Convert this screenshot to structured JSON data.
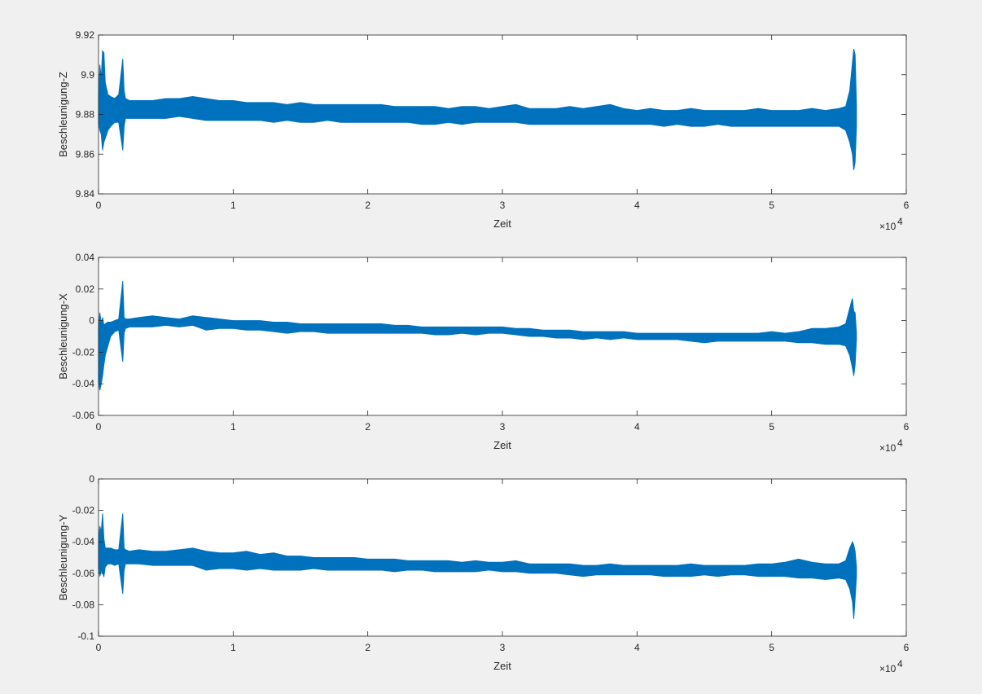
{
  "chart_data": [
    {
      "type": "band",
      "color": "#0072bd",
      "xlabel": "Zeit",
      "ylabel": "Beschleunigung-Z",
      "x_multiplier": "×10",
      "x_multiplier_exponent": "4",
      "xlim": [
        0,
        60000
      ],
      "xticks": [
        0,
        {
          "value": 10000,
          "label": "1"
        },
        {
          "value": 20000,
          "label": "2"
        },
        {
          "value": 30000,
          "label": "3"
        },
        {
          "value": 40000,
          "label": "4"
        },
        {
          "value": 50000,
          "label": "5"
        },
        {
          "value": 60000,
          "label": "6"
        }
      ],
      "ylim": [
        9.84,
        9.92
      ],
      "yticks": [
        9.84,
        9.86,
        9.88,
        9.9,
        9.92
      ],
      "x": [
        0,
        100,
        200,
        300,
        400,
        500,
        700,
        900,
        1200,
        1500,
        1800,
        1900,
        2000,
        2300,
        3000,
        4000,
        5000,
        6000,
        7000,
        8000,
        9000,
        10000,
        11000,
        12000,
        13000,
        14000,
        15000,
        16000,
        17000,
        18000,
        19000,
        20000,
        21000,
        22000,
        23000,
        24000,
        25000,
        26000,
        27000,
        28000,
        29000,
        30000,
        31000,
        32000,
        33000,
        34000,
        35000,
        36000,
        37000,
        38000,
        39000,
        40000,
        41000,
        42000,
        43000,
        44000,
        45000,
        46000,
        47000,
        48000,
        49000,
        50000,
        51000,
        52000,
        53000,
        54000,
        55000,
        55500,
        55800,
        56000,
        56100,
        56200,
        56300
      ],
      "upper": [
        9.888,
        9.905,
        9.898,
        9.912,
        9.911,
        9.896,
        9.89,
        9.889,
        9.888,
        9.89,
        9.908,
        9.892,
        9.888,
        9.887,
        9.887,
        9.887,
        9.888,
        9.888,
        9.889,
        9.888,
        9.887,
        9.887,
        9.886,
        9.886,
        9.886,
        9.885,
        9.886,
        9.885,
        9.885,
        9.885,
        9.885,
        9.885,
        9.885,
        9.884,
        9.884,
        9.884,
        9.884,
        9.883,
        9.884,
        9.884,
        9.883,
        9.884,
        9.885,
        9.883,
        9.883,
        9.883,
        9.884,
        9.883,
        9.884,
        9.885,
        9.883,
        9.882,
        9.883,
        9.882,
        9.882,
        9.883,
        9.882,
        9.882,
        9.882,
        9.882,
        9.883,
        9.882,
        9.882,
        9.882,
        9.883,
        9.882,
        9.883,
        9.884,
        9.892,
        9.906,
        9.913,
        9.91,
        9.885
      ],
      "lower": [
        9.876,
        9.872,
        9.87,
        9.862,
        9.866,
        9.868,
        9.872,
        9.874,
        9.876,
        9.876,
        9.862,
        9.874,
        9.878,
        9.878,
        9.878,
        9.878,
        9.878,
        9.879,
        9.878,
        9.877,
        9.877,
        9.877,
        9.877,
        9.877,
        9.876,
        9.877,
        9.876,
        9.876,
        9.877,
        9.876,
        9.876,
        9.876,
        9.876,
        9.876,
        9.876,
        9.875,
        9.875,
        9.876,
        9.875,
        9.876,
        9.876,
        9.876,
        9.876,
        9.875,
        9.875,
        9.875,
        9.875,
        9.875,
        9.875,
        9.875,
        9.875,
        9.875,
        9.875,
        9.874,
        9.875,
        9.874,
        9.874,
        9.875,
        9.874,
        9.874,
        9.874,
        9.874,
        9.874,
        9.874,
        9.874,
        9.874,
        9.874,
        9.872,
        9.866,
        9.86,
        9.852,
        9.856,
        9.874
      ]
    },
    {
      "type": "band",
      "color": "#0072bd",
      "xlabel": "Zeit",
      "ylabel": "Beschleunigung-X",
      "x_multiplier": "×10",
      "x_multiplier_exponent": "4",
      "xlim": [
        0,
        60000
      ],
      "xticks": [
        0,
        {
          "value": 10000,
          "label": "1"
        },
        {
          "value": 20000,
          "label": "2"
        },
        {
          "value": 30000,
          "label": "3"
        },
        {
          "value": 40000,
          "label": "4"
        },
        {
          "value": 50000,
          "label": "5"
        },
        {
          "value": 60000,
          "label": "6"
        }
      ],
      "ylim": [
        -0.06,
        0.04
      ],
      "yticks": [
        -0.06,
        -0.04,
        -0.02,
        0,
        0.02,
        0.04
      ],
      "x": [
        0,
        100,
        200,
        300,
        400,
        500,
        700,
        900,
        1200,
        1500,
        1800,
        1900,
        2000,
        2300,
        3000,
        4000,
        5000,
        6000,
        7000,
        8000,
        9000,
        10000,
        11000,
        12000,
        13000,
        14000,
        15000,
        16000,
        17000,
        18000,
        19000,
        20000,
        21000,
        22000,
        23000,
        24000,
        25000,
        26000,
        27000,
        28000,
        29000,
        30000,
        31000,
        32000,
        33000,
        34000,
        35000,
        36000,
        37000,
        38000,
        39000,
        40000,
        41000,
        42000,
        43000,
        44000,
        45000,
        46000,
        47000,
        48000,
        49000,
        50000,
        51000,
        52000,
        53000,
        54000,
        55000,
        55500,
        55800,
        56000,
        56100,
        56200,
        56300
      ],
      "upper": [
        -0.005,
        0.005,
        -0.002,
        0.002,
        -0.003,
        -0.002,
        -0.001,
        -0.001,
        0,
        0.001,
        0.025,
        0.002,
        0.001,
        0.001,
        0.002,
        0.003,
        0.002,
        0.001,
        0.003,
        0.002,
        0.001,
        0,
        0,
        0,
        -0.001,
        -0.001,
        -0.002,
        -0.002,
        -0.002,
        -0.002,
        -0.002,
        -0.002,
        -0.002,
        -0.003,
        -0.003,
        -0.004,
        -0.004,
        -0.004,
        -0.004,
        -0.004,
        -0.004,
        -0.004,
        -0.005,
        -0.005,
        -0.006,
        -0.006,
        -0.006,
        -0.007,
        -0.007,
        -0.007,
        -0.007,
        -0.008,
        -0.008,
        -0.008,
        -0.008,
        -0.008,
        -0.008,
        -0.008,
        -0.008,
        -0.008,
        -0.008,
        -0.007,
        -0.008,
        -0.007,
        -0.005,
        -0.005,
        -0.004,
        -0.002,
        0.008,
        0.014,
        0.006,
        0.005,
        -0.008
      ],
      "lower": [
        -0.038,
        -0.044,
        -0.04,
        -0.035,
        -0.028,
        -0.022,
        -0.016,
        -0.01,
        -0.007,
        -0.006,
        -0.026,
        -0.008,
        -0.005,
        -0.004,
        -0.004,
        -0.004,
        -0.003,
        -0.004,
        -0.003,
        -0.006,
        -0.005,
        -0.005,
        -0.006,
        -0.006,
        -0.007,
        -0.008,
        -0.007,
        -0.007,
        -0.008,
        -0.008,
        -0.008,
        -0.008,
        -0.008,
        -0.008,
        -0.008,
        -0.008,
        -0.009,
        -0.009,
        -0.008,
        -0.009,
        -0.008,
        -0.008,
        -0.009,
        -0.01,
        -0.01,
        -0.011,
        -0.011,
        -0.012,
        -0.011,
        -0.012,
        -0.011,
        -0.012,
        -0.012,
        -0.012,
        -0.012,
        -0.013,
        -0.014,
        -0.013,
        -0.013,
        -0.013,
        -0.013,
        -0.013,
        -0.013,
        -0.014,
        -0.014,
        -0.015,
        -0.015,
        -0.016,
        -0.022,
        -0.03,
        -0.035,
        -0.028,
        -0.012
      ]
    },
    {
      "type": "band",
      "color": "#0072bd",
      "xlabel": "Zeit",
      "ylabel": "Beschleunigung-Y",
      "x_multiplier": "×10",
      "x_multiplier_exponent": "4",
      "xlim": [
        0,
        60000
      ],
      "xticks": [
        0,
        {
          "value": 10000,
          "label": "1"
        },
        {
          "value": 20000,
          "label": "2"
        },
        {
          "value": 30000,
          "label": "3"
        },
        {
          "value": 40000,
          "label": "4"
        },
        {
          "value": 50000,
          "label": "5"
        },
        {
          "value": 60000,
          "label": "6"
        }
      ],
      "ylim": [
        -0.1,
        0
      ],
      "yticks": [
        -0.1,
        -0.08,
        -0.06,
        -0.04,
        -0.02,
        0
      ],
      "x": [
        0,
        100,
        200,
        300,
        400,
        500,
        700,
        900,
        1200,
        1500,
        1800,
        1900,
        2000,
        2300,
        3000,
        4000,
        5000,
        6000,
        7000,
        8000,
        9000,
        10000,
        11000,
        12000,
        13000,
        14000,
        15000,
        16000,
        17000,
        18000,
        19000,
        20000,
        21000,
        22000,
        23000,
        24000,
        25000,
        26000,
        27000,
        28000,
        29000,
        30000,
        31000,
        32000,
        33000,
        34000,
        35000,
        36000,
        37000,
        38000,
        39000,
        40000,
        41000,
        42000,
        43000,
        44000,
        45000,
        46000,
        47000,
        48000,
        49000,
        50000,
        51000,
        52000,
        53000,
        54000,
        55000,
        55500,
        55800,
        56000,
        56100,
        56200,
        56300
      ],
      "upper": [
        -0.04,
        -0.03,
        -0.034,
        -0.022,
        -0.038,
        -0.044,
        -0.044,
        -0.044,
        -0.045,
        -0.045,
        -0.022,
        -0.044,
        -0.045,
        -0.046,
        -0.045,
        -0.046,
        -0.046,
        -0.045,
        -0.044,
        -0.046,
        -0.047,
        -0.047,
        -0.046,
        -0.048,
        -0.047,
        -0.049,
        -0.049,
        -0.05,
        -0.05,
        -0.05,
        -0.05,
        -0.051,
        -0.051,
        -0.051,
        -0.052,
        -0.052,
        -0.052,
        -0.052,
        -0.053,
        -0.052,
        -0.053,
        -0.053,
        -0.052,
        -0.054,
        -0.054,
        -0.054,
        -0.054,
        -0.055,
        -0.055,
        -0.054,
        -0.055,
        -0.055,
        -0.055,
        -0.055,
        -0.055,
        -0.054,
        -0.055,
        -0.055,
        -0.055,
        -0.055,
        -0.054,
        -0.054,
        -0.053,
        -0.051,
        -0.053,
        -0.054,
        -0.054,
        -0.052,
        -0.044,
        -0.04,
        -0.042,
        -0.046,
        -0.056
      ],
      "lower": [
        -0.056,
        -0.062,
        -0.058,
        -0.06,
        -0.062,
        -0.056,
        -0.054,
        -0.054,
        -0.055,
        -0.054,
        -0.073,
        -0.058,
        -0.054,
        -0.054,
        -0.054,
        -0.055,
        -0.055,
        -0.055,
        -0.055,
        -0.058,
        -0.057,
        -0.057,
        -0.058,
        -0.057,
        -0.058,
        -0.058,
        -0.058,
        -0.057,
        -0.058,
        -0.058,
        -0.058,
        -0.058,
        -0.058,
        -0.059,
        -0.058,
        -0.058,
        -0.059,
        -0.059,
        -0.059,
        -0.059,
        -0.058,
        -0.059,
        -0.059,
        -0.06,
        -0.06,
        -0.06,
        -0.061,
        -0.062,
        -0.061,
        -0.061,
        -0.061,
        -0.061,
        -0.061,
        -0.062,
        -0.062,
        -0.062,
        -0.061,
        -0.062,
        -0.061,
        -0.061,
        -0.062,
        -0.062,
        -0.062,
        -0.063,
        -0.063,
        -0.064,
        -0.063,
        -0.064,
        -0.07,
        -0.078,
        -0.089,
        -0.076,
        -0.062
      ]
    }
  ]
}
